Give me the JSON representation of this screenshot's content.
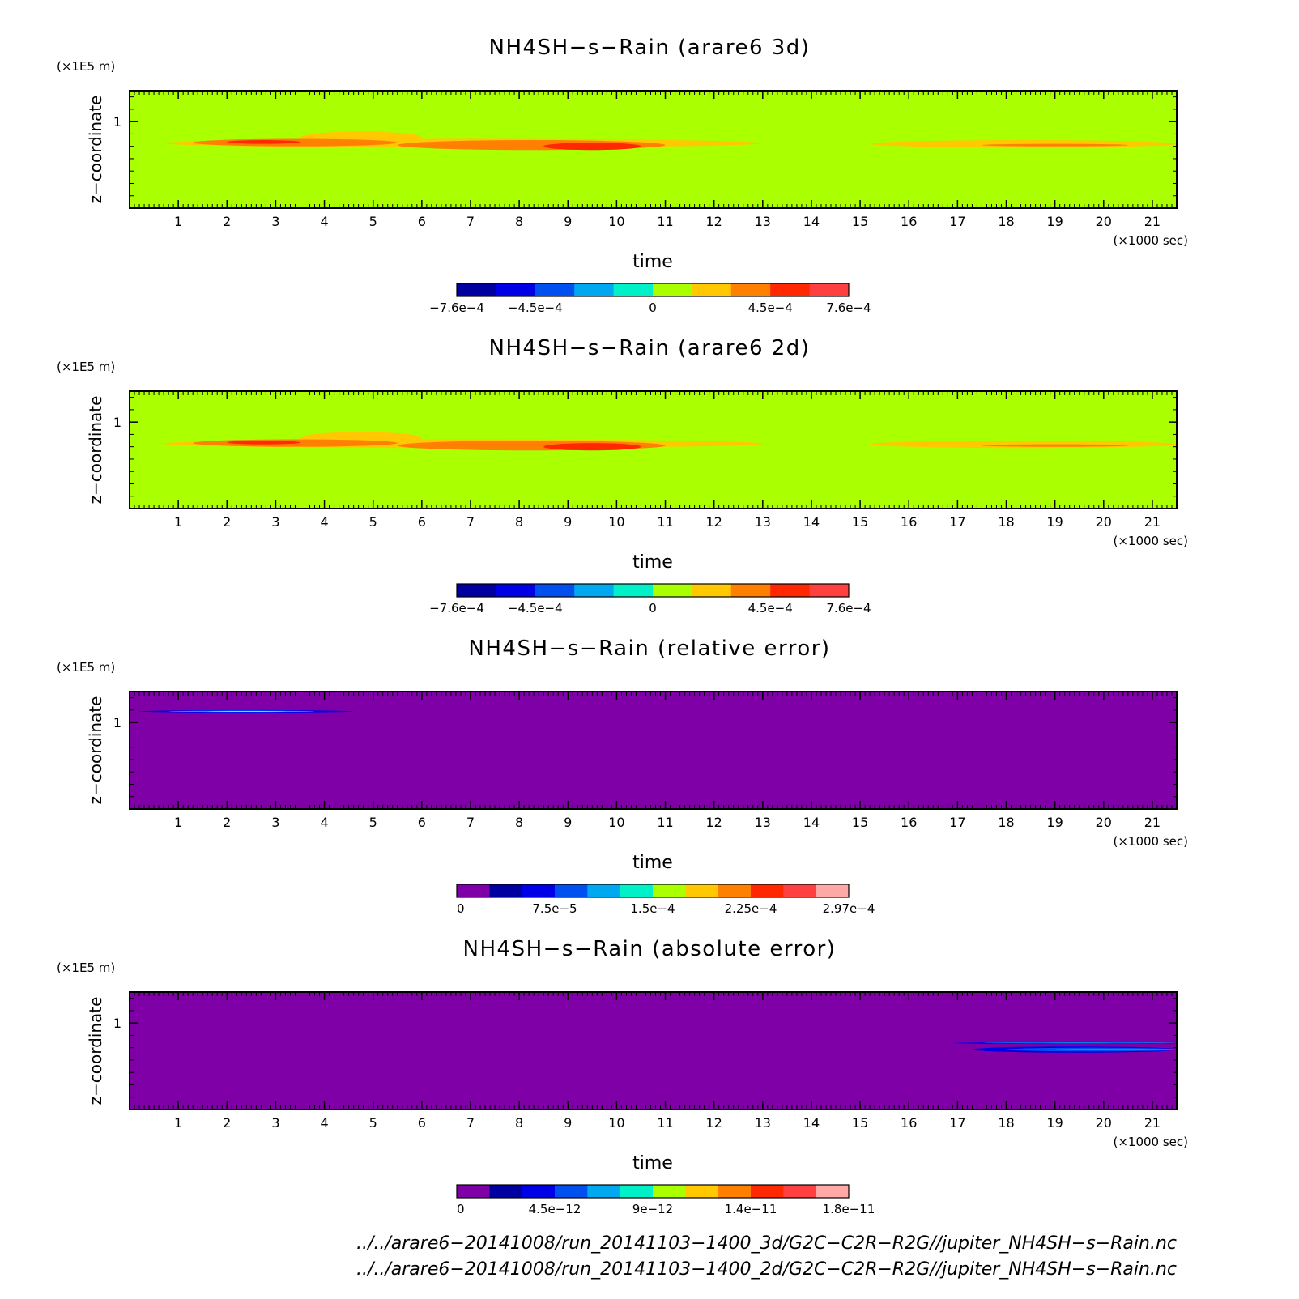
{
  "chart_data": [
    {
      "type": "heatmap",
      "title": "NH4SH−s−Rain (arare6 3d)",
      "xlabel": "time",
      "x_unit": "(×1000 sec)",
      "ylabel": "z−coordinate",
      "y_unit": "(×1E5 m)",
      "xlim": [
        0,
        21.5
      ],
      "ylim": [
        0.3,
        1.25
      ],
      "x_ticks": [
        "1",
        "2",
        "3",
        "4",
        "5",
        "6",
        "7",
        "8",
        "9",
        "10",
        "11",
        "12",
        "13",
        "14",
        "15",
        "16",
        "17",
        "18",
        "19",
        "20",
        "21"
      ],
      "y_ticks": [
        "1"
      ],
      "background_color": "#aaff00",
      "colorbar": {
        "colors": [
          "#0000a0",
          "#0000e6",
          "#0050f0",
          "#00a8f0",
          "#00f0c8",
          "#aaff00",
          "#ffc800",
          "#ff8000",
          "#ff2800",
          "#ff4040"
        ],
        "labels": [
          "−7.6e−4",
          "−4.5e−4",
          "0",
          "4.5e−4",
          "7.6e−4"
        ],
        "label_positions": [
          0,
          1,
          2.5,
          4,
          5
        ]
      },
      "blobs": [
        {
          "x": [
            0.7,
            13.0
          ],
          "y": [
            0.79,
            0.86
          ],
          "color": "#ffc800"
        },
        {
          "x": [
            3.5,
            6.0
          ],
          "y": [
            0.82,
            0.92
          ],
          "color": "#ffc800"
        },
        {
          "x": [
            1.3,
            5.5
          ],
          "y": [
            0.8,
            0.86
          ],
          "color": "#ff8000"
        },
        {
          "x": [
            5.5,
            11.0
          ],
          "y": [
            0.77,
            0.85
          ],
          "color": "#ff8000"
        },
        {
          "x": [
            2.0,
            3.5
          ],
          "y": [
            0.82,
            0.85
          ],
          "color": "#ff2800"
        },
        {
          "x": [
            8.5,
            10.5
          ],
          "y": [
            0.77,
            0.83
          ],
          "color": "#ff2800"
        },
        {
          "x": [
            15.2,
            21.5
          ],
          "y": [
            0.79,
            0.85
          ],
          "color": "#ffc800"
        },
        {
          "x": [
            17.5,
            20.5
          ],
          "y": [
            0.8,
            0.82
          ],
          "color": "#ff8000"
        }
      ]
    },
    {
      "type": "heatmap",
      "title": "NH4SH−s−Rain (arare6 2d)",
      "xlabel": "time",
      "x_unit": "(×1000 sec)",
      "ylabel": "z−coordinate",
      "y_unit": "(×1E5 m)",
      "xlim": [
        0,
        21.5
      ],
      "ylim": [
        0.3,
        1.25
      ],
      "x_ticks": [
        "1",
        "2",
        "3",
        "4",
        "5",
        "6",
        "7",
        "8",
        "9",
        "10",
        "11",
        "12",
        "13",
        "14",
        "15",
        "16",
        "17",
        "18",
        "19",
        "20",
        "21"
      ],
      "y_ticks": [
        "1"
      ],
      "background_color": "#aaff00",
      "colorbar": {
        "colors": [
          "#0000a0",
          "#0000e6",
          "#0050f0",
          "#00a8f0",
          "#00f0c8",
          "#aaff00",
          "#ffc800",
          "#ff8000",
          "#ff2800",
          "#ff4040"
        ],
        "labels": [
          "−7.6e−4",
          "−4.5e−4",
          "0",
          "4.5e−4",
          "7.6e−4"
        ],
        "label_positions": [
          0,
          1,
          2.5,
          4,
          5
        ]
      },
      "blobs": [
        {
          "x": [
            0.7,
            13.0
          ],
          "y": [
            0.79,
            0.86
          ],
          "color": "#ffc800"
        },
        {
          "x": [
            3.5,
            6.0
          ],
          "y": [
            0.82,
            0.92
          ],
          "color": "#ffc800"
        },
        {
          "x": [
            1.3,
            5.5
          ],
          "y": [
            0.8,
            0.86
          ],
          "color": "#ff8000"
        },
        {
          "x": [
            5.5,
            11.0
          ],
          "y": [
            0.77,
            0.85
          ],
          "color": "#ff8000"
        },
        {
          "x": [
            2.0,
            3.5
          ],
          "y": [
            0.82,
            0.85
          ],
          "color": "#ff2800"
        },
        {
          "x": [
            8.5,
            10.5
          ],
          "y": [
            0.77,
            0.83
          ],
          "color": "#ff2800"
        },
        {
          "x": [
            15.2,
            21.5
          ],
          "y": [
            0.79,
            0.85
          ],
          "color": "#ffc800"
        },
        {
          "x": [
            17.5,
            20.5
          ],
          "y": [
            0.8,
            0.82
          ],
          "color": "#ff8000"
        }
      ]
    },
    {
      "type": "heatmap",
      "title": "NH4SH−s−Rain (relative error)",
      "xlabel": "time",
      "x_unit": "(×1000 sec)",
      "ylabel": "z−coordinate",
      "y_unit": "(×1E5 m)",
      "xlim": [
        0,
        21.5
      ],
      "ylim": [
        0.3,
        1.25
      ],
      "x_ticks": [
        "1",
        "2",
        "3",
        "4",
        "5",
        "6",
        "7",
        "8",
        "9",
        "10",
        "11",
        "12",
        "13",
        "14",
        "15",
        "16",
        "17",
        "18",
        "19",
        "20",
        "21"
      ],
      "y_ticks": [
        "1"
      ],
      "background_color": "#8000a8",
      "colorbar": {
        "colors": [
          "#8000a8",
          "#0000a0",
          "#0000e6",
          "#0050f0",
          "#00a8f0",
          "#00f0c8",
          "#aaff00",
          "#ffc800",
          "#ff8000",
          "#ff2800",
          "#ff4040",
          "#ffa8a8"
        ],
        "labels": [
          "0",
          "7.5e−5",
          "1.5e−4",
          "2.25e−4",
          "2.97e−4"
        ],
        "label_positions": [
          0,
          3,
          6,
          9,
          12
        ]
      },
      "blobs": [
        {
          "x": [
            0.2,
            4.6
          ],
          "y": [
            1.08,
            1.1
          ],
          "color": "#0000e6"
        },
        {
          "x": [
            0.8,
            3.8
          ],
          "y": [
            1.085,
            1.095
          ],
          "color": "#00a8f0"
        },
        {
          "x": [
            1.6,
            3.2
          ],
          "y": [
            1.087,
            1.093
          ],
          "color": "#aaff00"
        }
      ]
    },
    {
      "type": "heatmap",
      "title": "NH4SH−s−Rain (absolute error)",
      "xlabel": "time",
      "x_unit": "(×1000 sec)",
      "ylabel": "z−coordinate",
      "y_unit": "(×1E5 m)",
      "xlim": [
        0,
        21.5
      ],
      "ylim": [
        0.3,
        1.25
      ],
      "x_ticks": [
        "1",
        "2",
        "3",
        "4",
        "5",
        "6",
        "7",
        "8",
        "9",
        "10",
        "11",
        "12",
        "13",
        "14",
        "15",
        "16",
        "17",
        "18",
        "19",
        "20",
        "21"
      ],
      "y_ticks": [
        "1"
      ],
      "background_color": "#8000a8",
      "colorbar": {
        "colors": [
          "#8000a8",
          "#0000a0",
          "#0000e6",
          "#0050f0",
          "#00a8f0",
          "#00f0c8",
          "#aaff00",
          "#ffc800",
          "#ff8000",
          "#ff2800",
          "#ff4040",
          "#ffa8a8"
        ],
        "labels": [
          "0",
          "4.5e−12",
          "9e−12",
          "1.4e−11",
          "1.8e−11"
        ],
        "label_positions": [
          0,
          3,
          6,
          9,
          12
        ]
      },
      "blobs": [
        {
          "x": [
            16.9,
            21.5
          ],
          "y": [
            0.83,
            0.845
          ],
          "color": "#0000e6"
        },
        {
          "x": [
            17.5,
            21.5
          ],
          "y": [
            0.835,
            0.842
          ],
          "color": "#00a8f0"
        },
        {
          "x": [
            17.3,
            21.5
          ],
          "y": [
            0.76,
            0.81
          ],
          "color": "#0000e6"
        },
        {
          "x": [
            18.0,
            21.5
          ],
          "y": [
            0.77,
            0.8
          ],
          "color": "#0050f0"
        },
        {
          "x": [
            19.0,
            21.5
          ],
          "y": [
            0.78,
            0.79
          ],
          "color": "#00a8f0"
        }
      ]
    }
  ],
  "footer": {
    "line1": "../../arare6−20141008/run_20141103−1400_3d/G2C−C2R−R2G//jupiter_NH4SH−s−Rain.nc",
    "line2": "../../arare6−20141008/run_20141103−1400_2d/G2C−C2R−R2G//jupiter_NH4SH−s−Rain.nc"
  }
}
